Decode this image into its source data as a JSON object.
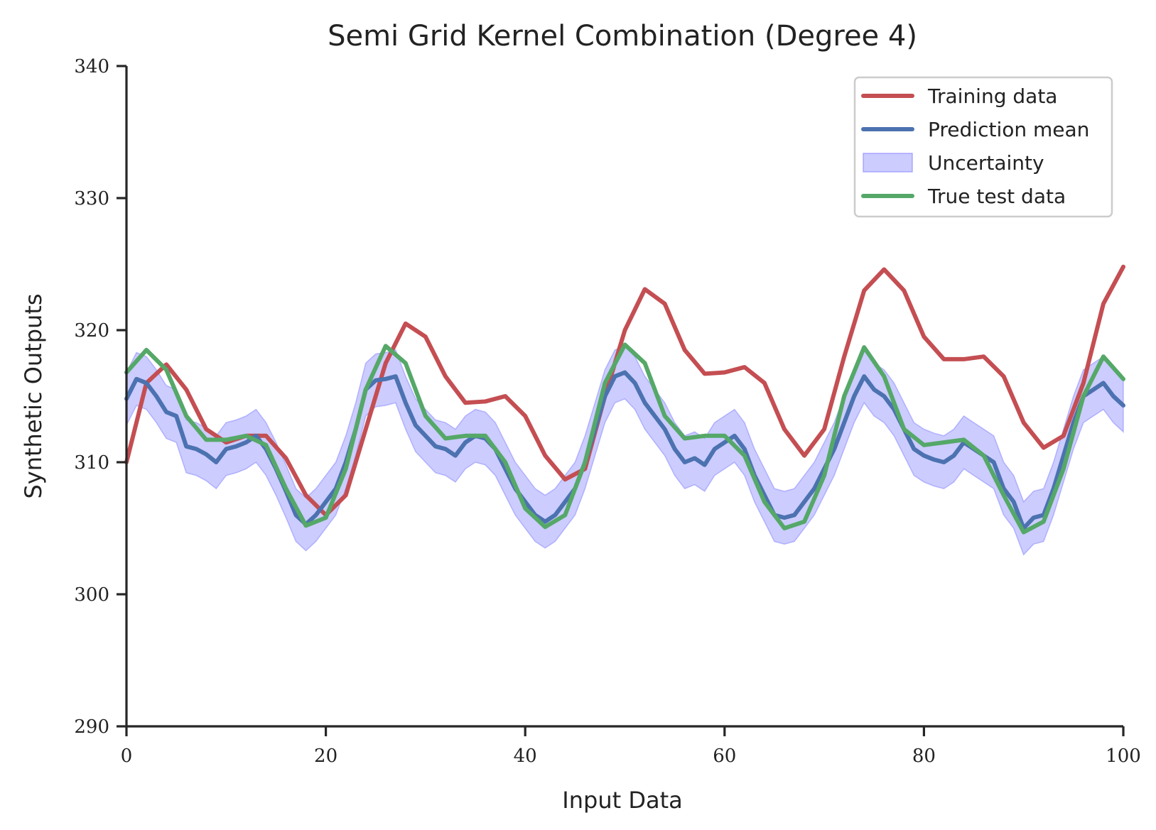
{
  "chart_data": {
    "type": "line",
    "title": "Semi Grid Kernel Combination (Degree 4)",
    "xlabel": "Input Data",
    "ylabel": "Synthetic Outputs",
    "xlim": [
      0,
      100
    ],
    "ylim": [
      290,
      340
    ],
    "xticks": [
      0,
      20,
      40,
      60,
      80,
      100
    ],
    "yticks": [
      290,
      300,
      310,
      320,
      330,
      340
    ],
    "grid": false,
    "legend_position": "top-right",
    "series": [
      {
        "name": "Training data",
        "color": "#c44e52",
        "x": [
          0,
          2,
          4,
          6,
          8,
          10,
          12,
          14,
          16,
          18,
          20,
          22,
          24,
          26,
          28,
          30,
          32,
          34,
          36,
          38,
          40,
          42,
          44,
          46,
          48,
          50,
          52,
          54,
          56,
          58,
          60,
          62,
          64,
          66,
          68,
          70,
          72,
          74,
          76,
          78,
          80,
          82,
          84,
          86,
          88,
          90,
          92,
          94,
          96,
          98,
          100
        ],
        "y": [
          310.0,
          316.0,
          317.4,
          315.5,
          312.5,
          311.5,
          312.0,
          312.0,
          310.3,
          307.5,
          306.0,
          307.5,
          312.5,
          317.5,
          320.5,
          319.5,
          316.5,
          314.5,
          314.6,
          315.0,
          313.5,
          310.5,
          308.7,
          309.5,
          315.0,
          320.0,
          323.1,
          322.0,
          318.5,
          316.7,
          316.8,
          317.2,
          316.0,
          312.5,
          310.5,
          312.5,
          318.0,
          323.0,
          324.6,
          323.0,
          319.5,
          317.8,
          317.8,
          318.0,
          316.5,
          313.0,
          311.1,
          312.0,
          316.0,
          322.0,
          324.8
        ]
      },
      {
        "name": "Prediction mean",
        "color": "#4c72b0",
        "x": [
          0,
          1,
          2,
          3,
          4,
          5,
          6,
          7,
          8,
          9,
          10,
          11,
          12,
          13,
          14,
          15,
          16,
          17,
          18,
          19,
          20,
          21,
          22,
          23,
          24,
          25,
          26,
          27,
          28,
          29,
          30,
          31,
          32,
          33,
          34,
          35,
          36,
          37,
          38,
          39,
          40,
          41,
          42,
          43,
          44,
          45,
          46,
          47,
          48,
          49,
          50,
          51,
          52,
          53,
          54,
          55,
          56,
          57,
          58,
          59,
          60,
          61,
          62,
          63,
          64,
          65,
          66,
          67,
          68,
          69,
          70,
          71,
          72,
          73,
          74,
          75,
          76,
          77,
          78,
          79,
          80,
          81,
          82,
          83,
          84,
          85,
          86,
          87,
          88,
          89,
          90,
          91,
          92,
          93,
          94,
          95,
          96,
          97,
          98,
          99,
          100
        ],
        "y": [
          314.8,
          316.3,
          316.0,
          315.0,
          313.8,
          313.5,
          311.2,
          311.0,
          310.6,
          310.0,
          311.0,
          311.2,
          311.5,
          312.0,
          311.0,
          309.5,
          307.8,
          306.0,
          305.3,
          306.0,
          307.0,
          308.0,
          310.0,
          312.5,
          315.5,
          316.2,
          316.3,
          316.5,
          314.5,
          312.8,
          312.0,
          311.2,
          311.0,
          310.5,
          311.5,
          312.0,
          311.8,
          311.0,
          309.5,
          308.0,
          307.0,
          306.0,
          305.5,
          306.0,
          307.0,
          308.0,
          310.0,
          312.5,
          315.0,
          316.5,
          316.8,
          316.0,
          314.5,
          313.5,
          312.5,
          311.0,
          310.0,
          310.3,
          309.8,
          311.0,
          311.5,
          312.0,
          311.0,
          309.0,
          307.5,
          306.0,
          305.8,
          306.0,
          307.0,
          308.0,
          309.5,
          311.0,
          313.0,
          315.0,
          316.5,
          315.5,
          315.0,
          314.0,
          312.5,
          311.0,
          310.5,
          310.2,
          310.0,
          310.5,
          311.5,
          311.0,
          310.5,
          310.0,
          308.0,
          307.0,
          305.0,
          305.8,
          306.0,
          308.0,
          310.5,
          313.0,
          315.0,
          315.5,
          316.0,
          315.0,
          314.3
        ]
      },
      {
        "name": "Uncertainty",
        "color": "#8080ff",
        "opacity": 0.4,
        "band_halfwidth": 2.0
      },
      {
        "name": "True test data",
        "color": "#55a868",
        "x": [
          0,
          2,
          4,
          6,
          8,
          10,
          12,
          14,
          16,
          18,
          20,
          22,
          24,
          26,
          28,
          30,
          32,
          34,
          36,
          38,
          40,
          42,
          44,
          46,
          48,
          50,
          52,
          54,
          56,
          58,
          60,
          62,
          64,
          66,
          68,
          70,
          72,
          74,
          76,
          78,
          80,
          82,
          84,
          86,
          88,
          90,
          92,
          94,
          96,
          98,
          100
        ],
        "y": [
          316.8,
          318.5,
          317.0,
          313.5,
          311.7,
          311.7,
          312.0,
          311.3,
          308.0,
          305.2,
          305.8,
          309.5,
          315.5,
          318.8,
          317.5,
          313.5,
          311.8,
          312.0,
          312.0,
          310.0,
          306.5,
          305.1,
          306.0,
          310.0,
          316.0,
          318.9,
          317.5,
          313.5,
          311.8,
          312.0,
          312.0,
          310.5,
          307.0,
          305.0,
          305.5,
          309.0,
          315.0,
          318.7,
          316.5,
          312.5,
          311.3,
          311.5,
          311.7,
          310.5,
          307.5,
          304.7,
          305.5,
          309.5,
          315.0,
          318.0,
          316.3
        ]
      }
    ]
  }
}
